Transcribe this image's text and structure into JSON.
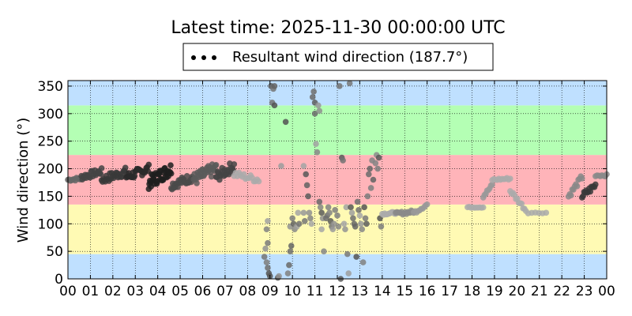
{
  "chart_data": {
    "type": "scatter",
    "title": "Latest time: 2025-11-30 00:00:00 UTC",
    "ylabel": "Wind direction (°)",
    "xlabel": "",
    "xlim": [
      0,
      24
    ],
    "ylim": [
      0,
      360
    ],
    "xticks": [
      "00",
      "01",
      "02",
      "03",
      "04",
      "05",
      "06",
      "07",
      "08",
      "09",
      "10",
      "11",
      "12",
      "13",
      "14",
      "15",
      "16",
      "17",
      "18",
      "19",
      "20",
      "21",
      "22",
      "23",
      "00"
    ],
    "yticks": [
      0,
      50,
      100,
      150,
      200,
      250,
      300,
      350
    ],
    "grid": true,
    "legend_position": "top-center",
    "series_name": "Resultant wind direction (187.7°)",
    "bands": [
      {
        "from": 0,
        "to": 45,
        "color": "#bfe0ff"
      },
      {
        "from": 45,
        "to": 135,
        "color": "#fffab4"
      },
      {
        "from": 135,
        "to": 225,
        "color": "#ffb4b9"
      },
      {
        "from": 225,
        "to": 315,
        "color": "#b4ffb4"
      },
      {
        "from": 315,
        "to": 360,
        "color": "#bfe0ff"
      }
    ],
    "segments": [
      {
        "x0": 0.0,
        "x1": 0.6,
        "y0": 180,
        "y1": 182,
        "amp": 3,
        "n": 12,
        "color": "#666666"
      },
      {
        "x0": 0.6,
        "x1": 1.5,
        "y0": 185,
        "y1": 195,
        "amp": 6,
        "n": 22,
        "color": "#444444"
      },
      {
        "x0": 1.5,
        "x1": 2.6,
        "y0": 180,
        "y1": 195,
        "amp": 8,
        "n": 28,
        "color": "#3a3a3a"
      },
      {
        "x0": 2.6,
        "x1": 3.6,
        "y0": 185,
        "y1": 200,
        "amp": 8,
        "n": 28,
        "color": "#2a2a2a"
      },
      {
        "x0": 3.6,
        "x1": 4.6,
        "y0": 175,
        "y1": 200,
        "amp": 12,
        "n": 40,
        "color": "#1e1e1e"
      },
      {
        "x0": 4.6,
        "x1": 5.6,
        "y0": 170,
        "y1": 185,
        "amp": 8,
        "n": 28,
        "color": "#4a4a4a"
      },
      {
        "x0": 5.6,
        "x1": 6.6,
        "y0": 180,
        "y1": 200,
        "amp": 12,
        "n": 30,
        "color": "#5a5a5a"
      },
      {
        "x0": 6.6,
        "x1": 7.4,
        "y0": 185,
        "y1": 205,
        "amp": 10,
        "n": 22,
        "color": "#444444"
      },
      {
        "x0": 7.4,
        "x1": 8.5,
        "y0": 190,
        "y1": 180,
        "amp": 6,
        "n": 16,
        "color": "#aaaaaa"
      }
    ],
    "points": [
      [
        8.75,
        40
      ],
      [
        8.85,
        30
      ],
      [
        8.9,
        20
      ],
      [
        8.95,
        10
      ],
      [
        9.0,
        5
      ],
      [
        8.8,
        55
      ],
      [
        8.9,
        65
      ],
      [
        8.85,
        90
      ],
      [
        8.9,
        105
      ],
      [
        9.05,
        350
      ],
      [
        9.15,
        345
      ],
      [
        9.2,
        350
      ],
      [
        9.1,
        320
      ],
      [
        9.2,
        315
      ],
      [
        9.35,
        2
      ],
      [
        9.4,
        5
      ],
      [
        9.5,
        205
      ],
      [
        9.7,
        285
      ],
      [
        9.8,
        10
      ],
      [
        9.85,
        25
      ],
      [
        9.9,
        50
      ],
      [
        9.95,
        60
      ],
      [
        9.9,
        95
      ],
      [
        10.0,
        110
      ],
      [
        10.05,
        100
      ],
      [
        10.1,
        90
      ],
      [
        10.2,
        95
      ],
      [
        10.25,
        120
      ],
      [
        10.3,
        100
      ],
      [
        10.5,
        205
      ],
      [
        10.5,
        120
      ],
      [
        10.55,
        105
      ],
      [
        10.6,
        190
      ],
      [
        10.65,
        170
      ],
      [
        10.7,
        150
      ],
      [
        10.75,
        120
      ],
      [
        10.8,
        110
      ],
      [
        10.85,
        100
      ],
      [
        10.9,
        330
      ],
      [
        10.95,
        340
      ],
      [
        11.0,
        300
      ],
      [
        11.0,
        320
      ],
      [
        11.05,
        245
      ],
      [
        11.1,
        230
      ],
      [
        11.15,
        315
      ],
      [
        11.2,
        305
      ],
      [
        11.2,
        140
      ],
      [
        11.25,
        130
      ],
      [
        11.3,
        120
      ],
      [
        11.35,
        110
      ],
      [
        11.3,
        90
      ],
      [
        11.4,
        50
      ],
      [
        11.5,
        110
      ],
      [
        11.55,
        115
      ],
      [
        11.6,
        130
      ],
      [
        11.65,
        120
      ],
      [
        11.7,
        105
      ],
      [
        11.75,
        95
      ],
      [
        11.8,
        90
      ],
      [
        11.85,
        100
      ],
      [
        11.9,
        125
      ],
      [
        12.0,
        115
      ],
      [
        12.05,
        95
      ],
      [
        12.1,
        350
      ],
      [
        12.15,
        0
      ],
      [
        12.2,
        220
      ],
      [
        12.25,
        215
      ],
      [
        12.3,
        100
      ],
      [
        12.35,
        90
      ],
      [
        12.4,
        130
      ],
      [
        12.45,
        45
      ],
      [
        12.5,
        10
      ],
      [
        12.55,
        355
      ],
      [
        12.6,
        130
      ],
      [
        12.65,
        120
      ],
      [
        12.7,
        110
      ],
      [
        12.75,
        100
      ],
      [
        12.8,
        95
      ],
      [
        12.85,
        40
      ],
      [
        12.9,
        140
      ],
      [
        12.95,
        125
      ],
      [
        13.0,
        115
      ],
      [
        13.05,
        100
      ],
      [
        13.1,
        90
      ],
      [
        13.15,
        30
      ],
      [
        13.2,
        130
      ],
      [
        13.25,
        110
      ],
      [
        13.3,
        100
      ],
      [
        13.35,
        150
      ],
      [
        13.4,
        190
      ],
      [
        13.45,
        200
      ],
      [
        13.5,
        165
      ],
      [
        13.55,
        215
      ],
      [
        13.6,
        180
      ],
      [
        13.7,
        210
      ],
      [
        13.75,
        225
      ],
      [
        13.8,
        200
      ],
      [
        13.85,
        220
      ],
      [
        13.9,
        110
      ],
      [
        13.95,
        95
      ]
    ],
    "tail_segments": [
      {
        "x0": 14.0,
        "x1": 14.6,
        "y0": 118,
        "y1": 120,
        "amp": 2,
        "n": 12,
        "color": "#aaaaaa"
      },
      {
        "x0": 14.6,
        "x1": 15.4,
        "y0": 118,
        "y1": 122,
        "amp": 3,
        "n": 16,
        "color": "#8a8a8a"
      },
      {
        "x0": 15.4,
        "x1": 16.0,
        "y0": 120,
        "y1": 135,
        "amp": 3,
        "n": 10,
        "color": "#999999"
      },
      {
        "x0": 17.8,
        "x1": 18.5,
        "y0": 130,
        "y1": 130,
        "amp": 1,
        "n": 10,
        "color": "#aaaaaa"
      },
      {
        "x0": 18.5,
        "x1": 18.9,
        "y0": 150,
        "y1": 170,
        "amp": 3,
        "n": 8,
        "color": "#999999"
      },
      {
        "x0": 18.9,
        "x1": 19.7,
        "y0": 180,
        "y1": 182,
        "amp": 2,
        "n": 12,
        "color": "#aaaaaa"
      },
      {
        "x0": 19.7,
        "x1": 20.4,
        "y0": 160,
        "y1": 125,
        "amp": 4,
        "n": 12,
        "color": "#aaaaaa"
      },
      {
        "x0": 20.5,
        "x1": 21.3,
        "y0": 120,
        "y1": 120,
        "amp": 1,
        "n": 6,
        "color": "#aaaaaa"
      },
      {
        "x0": 22.3,
        "x1": 22.9,
        "y0": 150,
        "y1": 185,
        "amp": 5,
        "n": 12,
        "color": "#888888"
      },
      {
        "x0": 22.9,
        "x1": 23.5,
        "y0": 150,
        "y1": 170,
        "amp": 6,
        "n": 14,
        "color": "#3a3a3a"
      },
      {
        "x0": 23.5,
        "x1": 24.0,
        "y0": 188,
        "y1": 188,
        "amp": 2,
        "n": 8,
        "color": "#8a8a8a"
      }
    ]
  }
}
